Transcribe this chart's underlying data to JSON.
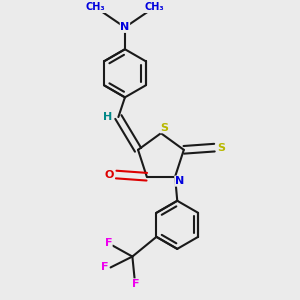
{
  "bg_color": "#ebebeb",
  "bond_color": "#1a1a1a",
  "bond_width": 1.5,
  "atom_colors": {
    "S": "#b8b800",
    "N": "#0000dd",
    "O": "#dd0000",
    "F": "#ee00ee",
    "H": "#008888",
    "C": "#1a1a1a"
  },
  "figsize": [
    3.0,
    3.0
  ],
  "dpi": 100,
  "xlim": [
    -1.2,
    1.2
  ],
  "ylim": [
    -1.3,
    1.3
  ]
}
